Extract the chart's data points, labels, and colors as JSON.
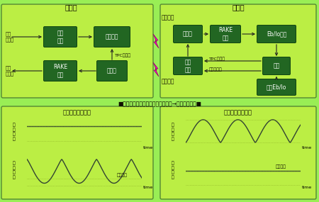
{
  "bg_color": "#99ee55",
  "panel_bg": "#bbee44",
  "block_bg": "#226622",
  "block_border": "#114411",
  "block_text_color": "#ffffff",
  "arrow_color": "#222222",
  "lightning_color": "#ff00cc",
  "mobile_label": "移動局",
  "base_label": "基地局",
  "uplink_label": "上り回線",
  "downlink_label": "下り回線",
  "tpc_bit_label": "TPCビット",
  "tx_data_label": "送信\nデータ",
  "rx_data_label": "受信\nデータ",
  "tx_data_label2": "送信データ",
  "title_text": "■瞬時変動に追従する送信電力制御→ミニマム電力■",
  "left_chart_title": "送信電力制御無し",
  "right_chart_title": "送信電力制御有り",
  "ylabel_tx": "送\n信\n電\n力",
  "ylabel_rx": "受\n信\n電\n力",
  "xlabel_time": "time",
  "quality_label": "所要品質"
}
